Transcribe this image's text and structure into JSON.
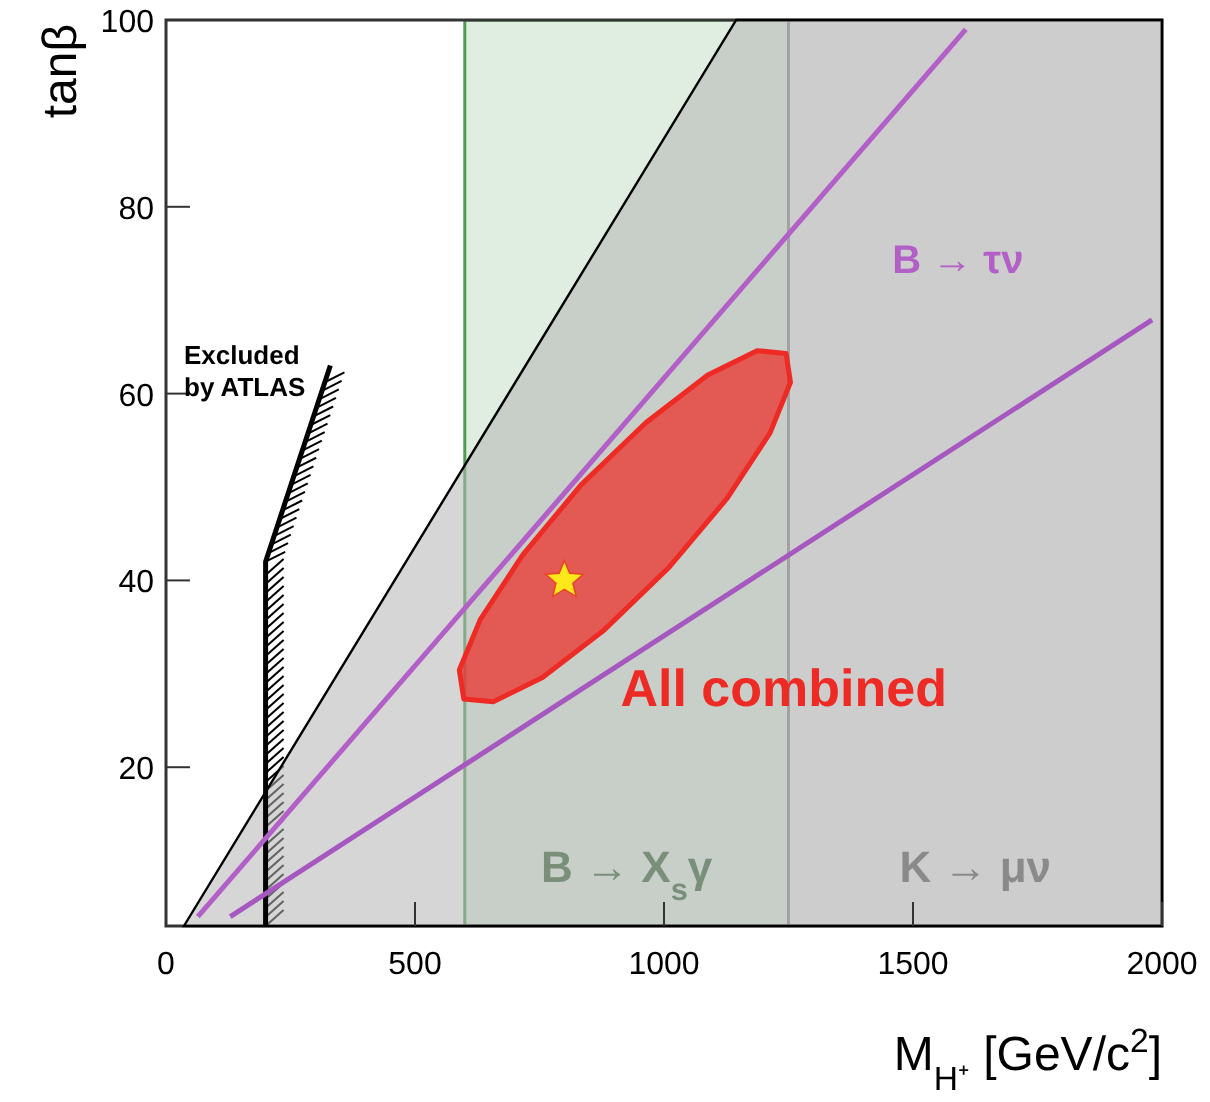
{
  "chart_data": {
    "type": "line",
    "xlabel": "M$_{H⁺}$ [GeV/c$^{2}$]",
    "ylabel": "tanβ",
    "xlim": [
      0,
      2000
    ],
    "xticks": [
      0,
      500,
      1000,
      1500,
      2000
    ],
    "ylim": [
      3,
      100
    ],
    "yticks": [
      20,
      40,
      60,
      80,
      100
    ],
    "grid": false,
    "legend": false,
    "bands": [
      {
        "axis": "x",
        "from": 600,
        "to": 1250,
        "label": "B → X$_{s}$γ",
        "color": "#4e9e52"
      },
      {
        "axis": "x",
        "from": 1250,
        "to": 2000,
        "label": "K → μν",
        "color": "#8c8c8c"
      }
    ],
    "series": [
      {
        "type": "area",
        "color": "#b4b4b4",
        "x": [
          36,
          1145,
          2000
        ],
        "values": [
          3,
          100,
          100
        ]
      },
      {
        "type": "line",
        "color": "#000000",
        "x": [
          200,
          200,
          330
        ],
        "values": [
          3,
          42,
          63
        ]
      },
      {
        "type": "line",
        "color": "#b25fc8",
        "name": "B → τν",
        "x": [
          64,
          1606
        ],
        "values": [
          4,
          99
        ]
      },
      {
        "type": "line",
        "color": "#a658c0",
        "x": [
          129,
          1980
        ],
        "values": [
          4,
          67.9
        ]
      },
      {
        "type": "area",
        "color": "#ee2a24",
        "name": "All combined",
        "x": [
          1245,
          1254,
          1213,
          1127,
          1010,
          880,
          756,
          657,
          598,
          589,
          631,
          716,
          833,
          964,
          1088,
          1187,
          1245
        ],
        "values": [
          64.3,
          61.2,
          55.8,
          48.8,
          41.4,
          34.7,
          29.6,
          27.0,
          27.3,
          30.4,
          35.8,
          42.7,
          50.2,
          56.9,
          62.0,
          64.6,
          64.3
        ]
      },
      {
        "type": "scatter",
        "color": "#ffe81a",
        "marker": "star",
        "x": [
          800
        ],
        "values": [
          40
        ]
      }
    ],
    "annotations": [
      "Excluded by ATLAS"
    ]
  }
}
